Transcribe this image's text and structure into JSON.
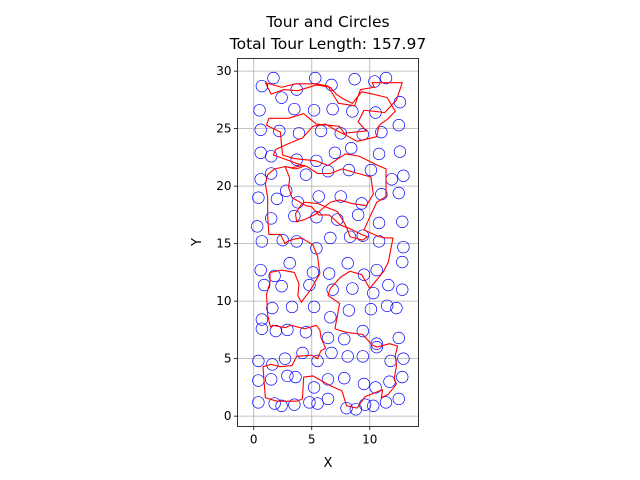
{
  "chart_data": {
    "type": "scatter",
    "title": "Tour and Circles",
    "subtitle": "Total Tour Length: 157.97",
    "xlabel": "X",
    "ylabel": "Y",
    "xlim": [
      -1.4,
      14.2
    ],
    "ylim": [
      -0.9,
      31.1
    ],
    "xticks": [
      0,
      5,
      10
    ],
    "yticks": [
      0,
      5,
      10,
      15,
      20,
      25,
      30
    ],
    "grid": true,
    "circle_color": "#0000ff",
    "tour_color": "#ff0000",
    "circles": [
      [
        0.7,
        28.7
      ],
      [
        1.7,
        29.4
      ],
      [
        3.7,
        28.4
      ],
      [
        5.3,
        29.4
      ],
      [
        6.7,
        28.8
      ],
      [
        8.7,
        29.3
      ],
      [
        10.4,
        29.1
      ],
      [
        11.4,
        29.4
      ],
      [
        0.5,
        26.6
      ],
      [
        2.4,
        27.7
      ],
      [
        3.5,
        26.7
      ],
      [
        5.2,
        26.6
      ],
      [
        6.8,
        26.7
      ],
      [
        8.5,
        26.5
      ],
      [
        10.5,
        26.4
      ],
      [
        12.6,
        27.3
      ],
      [
        0.6,
        24.9
      ],
      [
        2.2,
        24.8
      ],
      [
        3.9,
        24.6
      ],
      [
        5.8,
        24.8
      ],
      [
        7.5,
        24.6
      ],
      [
        9.4,
        24.5
      ],
      [
        11.0,
        24.7
      ],
      [
        12.5,
        25.3
      ],
      [
        0.6,
        22.9
      ],
      [
        1.5,
        22.6
      ],
      [
        3.7,
        22.3
      ],
      [
        5.4,
        22.2
      ],
      [
        7.0,
        22.9
      ],
      [
        8.4,
        23.3
      ],
      [
        10.8,
        22.8
      ],
      [
        12.6,
        23.0
      ],
      [
        0.6,
        20.6
      ],
      [
        1.5,
        21.1
      ],
      [
        2.8,
        19.6
      ],
      [
        4.5,
        21.0
      ],
      [
        6.4,
        21.3
      ],
      [
        8.2,
        21.4
      ],
      [
        10.1,
        21.4
      ],
      [
        11.9,
        20.6
      ],
      [
        12.9,
        20.9
      ],
      [
        0.4,
        19.0
      ],
      [
        2.0,
        18.9
      ],
      [
        3.8,
        18.6
      ],
      [
        5.6,
        19.1
      ],
      [
        7.5,
        19.1
      ],
      [
        9.3,
        18.5
      ],
      [
        11.0,
        19.3
      ],
      [
        12.5,
        19.4
      ],
      [
        0.3,
        16.5
      ],
      [
        1.5,
        17.2
      ],
      [
        3.5,
        17.4
      ],
      [
        5.4,
        17.3
      ],
      [
        7.2,
        17.1
      ],
      [
        9.0,
        17.5
      ],
      [
        10.8,
        16.8
      ],
      [
        12.8,
        16.9
      ],
      [
        0.7,
        15.2
      ],
      [
        2.5,
        15.3
      ],
      [
        3.7,
        15.2
      ],
      [
        5.4,
        14.6
      ],
      [
        6.6,
        15.5
      ],
      [
        8.3,
        15.6
      ],
      [
        9.4,
        15.7
      ],
      [
        10.8,
        15.2
      ],
      [
        12.9,
        14.7
      ],
      [
        0.6,
        12.7
      ],
      [
        1.8,
        12.2
      ],
      [
        3.1,
        13.3
      ],
      [
        5.1,
        12.5
      ],
      [
        6.5,
        12.4
      ],
      [
        8.1,
        13.3
      ],
      [
        9.5,
        12.3
      ],
      [
        10.6,
        12.7
      ],
      [
        12.8,
        13.4
      ],
      [
        0.9,
        11.4
      ],
      [
        2.4,
        11.3
      ],
      [
        4.8,
        11.4
      ],
      [
        6.8,
        11.0
      ],
      [
        8.5,
        11.1
      ],
      [
        10.3,
        10.7
      ],
      [
        11.6,
        11.4
      ],
      [
        12.8,
        11.0
      ],
      [
        0.7,
        8.4
      ],
      [
        1.6,
        9.4
      ],
      [
        3.3,
        9.5
      ],
      [
        5.2,
        9.5
      ],
      [
        6.6,
        8.6
      ],
      [
        8.2,
        9.2
      ],
      [
        10.1,
        9.3
      ],
      [
        11.5,
        9.6
      ],
      [
        12.3,
        9.4
      ],
      [
        0.7,
        7.6
      ],
      [
        1.9,
        7.4
      ],
      [
        2.9,
        7.5
      ],
      [
        4.5,
        7.3
      ],
      [
        6.4,
        6.8
      ],
      [
        7.8,
        6.7
      ],
      [
        9.4,
        7.4
      ],
      [
        10.6,
        6.3
      ],
      [
        12.5,
        6.8
      ],
      [
        0.4,
        4.8
      ],
      [
        1.6,
        4.5
      ],
      [
        2.7,
        5.0
      ],
      [
        4.2,
        5.5
      ],
      [
        5.5,
        4.8
      ],
      [
        6.7,
        5.5
      ],
      [
        8.1,
        5.2
      ],
      [
        9.4,
        5.2
      ],
      [
        10.6,
        6.0
      ],
      [
        11.8,
        4.8
      ],
      [
        12.9,
        5.0
      ],
      [
        0.4,
        3.1
      ],
      [
        1.5,
        3.2
      ],
      [
        2.9,
        3.5
      ],
      [
        3.6,
        3.4
      ],
      [
        5.2,
        2.5
      ],
      [
        6.4,
        3.2
      ],
      [
        7.8,
        3.3
      ],
      [
        9.5,
        2.8
      ],
      [
        10.5,
        2.5
      ],
      [
        11.7,
        3.0
      ],
      [
        12.8,
        3.4
      ],
      [
        0.4,
        1.2
      ],
      [
        1.8,
        1.1
      ],
      [
        2.4,
        0.9
      ],
      [
        3.5,
        1.0
      ],
      [
        4.8,
        1.2
      ],
      [
        5.5,
        1.1
      ],
      [
        6.4,
        1.5
      ],
      [
        8.0,
        0.7
      ],
      [
        8.8,
        0.6
      ],
      [
        9.6,
        1.0
      ],
      [
        10.3,
        0.9
      ],
      [
        11.4,
        1.2
      ],
      [
        12.5,
        1.5
      ]
    ],
    "tour": [
      [
        1.0,
        29.0
      ],
      [
        2.4,
        28.6
      ],
      [
        3.6,
        28.9
      ],
      [
        5.4,
        28.9
      ],
      [
        6.4,
        28.7
      ],
      [
        7.3,
        27.2
      ],
      [
        8.7,
        27.0
      ],
      [
        9.2,
        28.4
      ],
      [
        10.4,
        28.6
      ],
      [
        10.2,
        29.0
      ],
      [
        12.8,
        29.0
      ],
      [
        12.3,
        27.5
      ],
      [
        11.3,
        26.4
      ],
      [
        9.5,
        26.6
      ],
      [
        9.0,
        25.6
      ],
      [
        9.7,
        24.8
      ],
      [
        7.8,
        24.6
      ],
      [
        7.4,
        25.2
      ],
      [
        5.4,
        25.4
      ],
      [
        4.3,
        26.3
      ],
      [
        3.0,
        25.9
      ],
      [
        1.3,
        25.9
      ],
      [
        1.1,
        25.3
      ],
      [
        2.3,
        24.7
      ],
      [
        2.4,
        23.5
      ],
      [
        2.5,
        22.7
      ],
      [
        3.5,
        22.4
      ],
      [
        4.4,
        22.3
      ],
      [
        5.4,
        22.2
      ],
      [
        6.4,
        21.8
      ],
      [
        7.9,
        22.8
      ],
      [
        9.1,
        22.6
      ],
      [
        10.7,
        21.8
      ],
      [
        11.4,
        21.5
      ],
      [
        11.4,
        20.3
      ],
      [
        11.4,
        19.1
      ],
      [
        10.6,
        18.6
      ],
      [
        10.0,
        17.3
      ],
      [
        9.5,
        16.2
      ],
      [
        10.8,
        15.6
      ],
      [
        11.4,
        15.5
      ],
      [
        12.0,
        15.5
      ],
      [
        11.6,
        13.4
      ],
      [
        11.2,
        12.6
      ],
      [
        10.4,
        11.6
      ],
      [
        10.0,
        11.1
      ],
      [
        9.3,
        12.3
      ],
      [
        8.3,
        12.6
      ],
      [
        7.5,
        12.1
      ],
      [
        6.6,
        11.1
      ],
      [
        6.4,
        10.5
      ],
      [
        7.4,
        9.8
      ],
      [
        7.0,
        7.6
      ],
      [
        7.9,
        7.3
      ],
      [
        9.4,
        7.1
      ],
      [
        10.2,
        6.2
      ],
      [
        10.6,
        6.0
      ],
      [
        11.7,
        6.3
      ],
      [
        12.4,
        6.1
      ],
      [
        12.2,
        5.3
      ],
      [
        12.3,
        4.4
      ],
      [
        12.1,
        3.2
      ],
      [
        12.3,
        2.8
      ],
      [
        11.6,
        1.9
      ],
      [
        11.0,
        1.6
      ],
      [
        11.1,
        2.3
      ],
      [
        9.6,
        1.7
      ],
      [
        8.9,
        0.7
      ],
      [
        8.0,
        0.9
      ],
      [
        7.6,
        2.2
      ],
      [
        6.7,
        2.6
      ],
      [
        5.8,
        3.1
      ],
      [
        5.1,
        3.5
      ],
      [
        4.3,
        3.4
      ],
      [
        4.2,
        1.5
      ],
      [
        3.7,
        1.3
      ],
      [
        2.0,
        1.3
      ],
      [
        1.0,
        1.6
      ],
      [
        0.9,
        2.9
      ],
      [
        0.8,
        4.3
      ],
      [
        1.5,
        4.5
      ],
      [
        2.3,
        4.3
      ],
      [
        3.3,
        4.4
      ],
      [
        3.7,
        5.2
      ],
      [
        5.0,
        5.3
      ],
      [
        5.5,
        5.0
      ],
      [
        5.8,
        5.7
      ],
      [
        6.2,
        5.9
      ],
      [
        5.8,
        6.8
      ],
      [
        5.7,
        7.5
      ],
      [
        5.4,
        7.9
      ],
      [
        4.4,
        7.6
      ],
      [
        3.2,
        7.9
      ],
      [
        2.7,
        7.7
      ],
      [
        1.6,
        7.9
      ],
      [
        1.5,
        7.7
      ],
      [
        1.4,
        7.9
      ],
      [
        1.2,
        8.8
      ],
      [
        1.1,
        10.6
      ],
      [
        1.4,
        11.6
      ],
      [
        1.4,
        12.5
      ],
      [
        2.4,
        12.7
      ],
      [
        3.5,
        12.5
      ],
      [
        3.9,
        11.5
      ],
      [
        3.8,
        10.5
      ],
      [
        4.1,
        9.9
      ],
      [
        4.9,
        11.0
      ],
      [
        5.7,
        12.4
      ],
      [
        5.5,
        13.9
      ],
      [
        5.1,
        14.9
      ],
      [
        4.1,
        15.5
      ],
      [
        3.5,
        15.4
      ],
      [
        2.9,
        15.2
      ],
      [
        2.7,
        15.0
      ],
      [
        2.3,
        15.8
      ],
      [
        1.3,
        15.8
      ],
      [
        1.2,
        17.4
      ],
      [
        1.2,
        19.0
      ],
      [
        1.0,
        20.2
      ],
      [
        1.2,
        21.0
      ],
      [
        1.8,
        21.5
      ],
      [
        2.7,
        21.7
      ],
      [
        3.3,
        21.6
      ],
      [
        4.2,
        21.8
      ],
      [
        4.4,
        21.8
      ],
      [
        4.0,
        21.6
      ],
      [
        3.6,
        21.5
      ],
      [
        2.7,
        21.7
      ],
      [
        3.1,
        20.7
      ],
      [
        3.0,
        19.9
      ],
      [
        3.3,
        19.0
      ],
      [
        4.5,
        18.3
      ],
      [
        5.0,
        18.2
      ],
      [
        5.6,
        17.5
      ],
      [
        6.5,
        17.5
      ],
      [
        7.5,
        16.6
      ],
      [
        8.3,
        16.3
      ],
      [
        9.3,
        15.8
      ],
      [
        9.8,
        15.6
      ],
      [
        9.4,
        15.3
      ],
      [
        8.3,
        15.6
      ],
      [
        8.0,
        16.4
      ],
      [
        7.7,
        17.0
      ],
      [
        7.2,
        17.8
      ],
      [
        6.2,
        18.2
      ],
      [
        5.5,
        18.5
      ],
      [
        4.4,
        18.6
      ],
      [
        4.1,
        18.4
      ],
      [
        3.6,
        17.6
      ],
      [
        3.7,
        16.9
      ],
      [
        4.4,
        17.1
      ],
      [
        5.4,
        17.6
      ],
      [
        6.6,
        18.6
      ],
      [
        7.4,
        18.8
      ],
      [
        8.4,
        18.5
      ],
      [
        9.7,
        18.3
      ],
      [
        10.3,
        19.3
      ],
      [
        10.1,
        20.8
      ],
      [
        9.0,
        21.1
      ],
      [
        7.6,
        21.5
      ],
      [
        6.6,
        21.1
      ],
      [
        5.5,
        21.1
      ],
      [
        4.6,
        21.7
      ],
      [
        3.9,
        21.9
      ],
      [
        3.1,
        22.2
      ],
      [
        2.0,
        22.6
      ],
      [
        1.7,
        22.7
      ],
      [
        1.9,
        23.2
      ],
      [
        3.0,
        23.7
      ],
      [
        4.2,
        24.2
      ],
      [
        5.1,
        25.2
      ],
      [
        6.2,
        25.4
      ],
      [
        7.0,
        24.9
      ],
      [
        8.0,
        24.4
      ],
      [
        8.9,
        23.9
      ],
      [
        10.6,
        24.3
      ],
      [
        10.8,
        25.3
      ],
      [
        11.5,
        25.8
      ],
      [
        12.2,
        26.5
      ],
      [
        11.5,
        27.7
      ],
      [
        10.3,
        28.0
      ],
      [
        9.3,
        28.2
      ],
      [
        8.5,
        27.2
      ],
      [
        7.7,
        27.6
      ],
      [
        7.1,
        28.0
      ],
      [
        6.6,
        28.6
      ],
      [
        5.4,
        28.8
      ],
      [
        3.8,
        28.3
      ],
      [
        2.6,
        28.4
      ],
      [
        1.5,
        28.0
      ],
      [
        1.0,
        29.0
      ]
    ]
  }
}
